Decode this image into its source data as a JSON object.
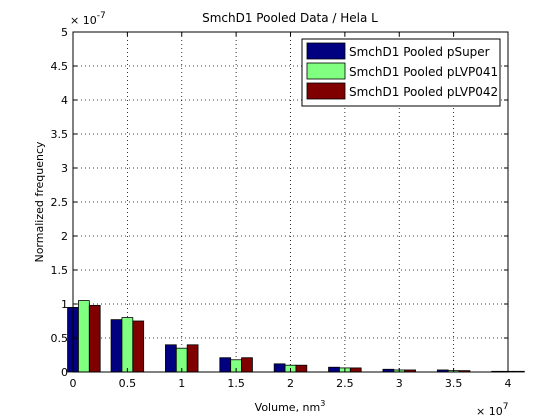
{
  "chart_data": {
    "type": "bar",
    "title": "SmchD1 Pooled Data / Hela L",
    "xlabel": "Volume, nm",
    "xlabel_superscript": "3",
    "ylabel": "Normalized frequency",
    "x_multiplier": "× 10",
    "x_multiplier_exp": "7",
    "y_multiplier": "× 10",
    "y_multiplier_exp": "-7",
    "xlim": [
      0,
      4
    ],
    "ylim": [
      0,
      5
    ],
    "xticks": [
      "0",
      "0.5",
      "1",
      "1.5",
      "2",
      "2.5",
      "3",
      "3.5",
      "4"
    ],
    "yticks": [
      "0",
      "0.5",
      "1",
      "1.5",
      "2",
      "2.5",
      "3",
      "3.5",
      "4",
      "4.5",
      "5"
    ],
    "grid": true,
    "legend_position": "top-right",
    "categories": [
      0.1,
      0.5,
      1.0,
      1.5,
      2.0,
      2.5,
      3.0,
      3.5,
      4.0
    ],
    "series": [
      {
        "name": "SmchD1 Pooled pSuper",
        "color": "#000080",
        "values": [
          0.95,
          0.77,
          0.4,
          0.21,
          0.12,
          0.07,
          0.04,
          0.03,
          0.01
        ]
      },
      {
        "name": "SmchD1 Pooled pLVP041",
        "color": "#80ff80",
        "values": [
          1.05,
          0.8,
          0.35,
          0.18,
          0.1,
          0.06,
          0.03,
          0.02,
          0.01
        ]
      },
      {
        "name": "SmchD1 Pooled pLVP042",
        "color": "#800000",
        "values": [
          0.98,
          0.75,
          0.4,
          0.21,
          0.1,
          0.06,
          0.03,
          0.02,
          0.01
        ]
      }
    ]
  }
}
